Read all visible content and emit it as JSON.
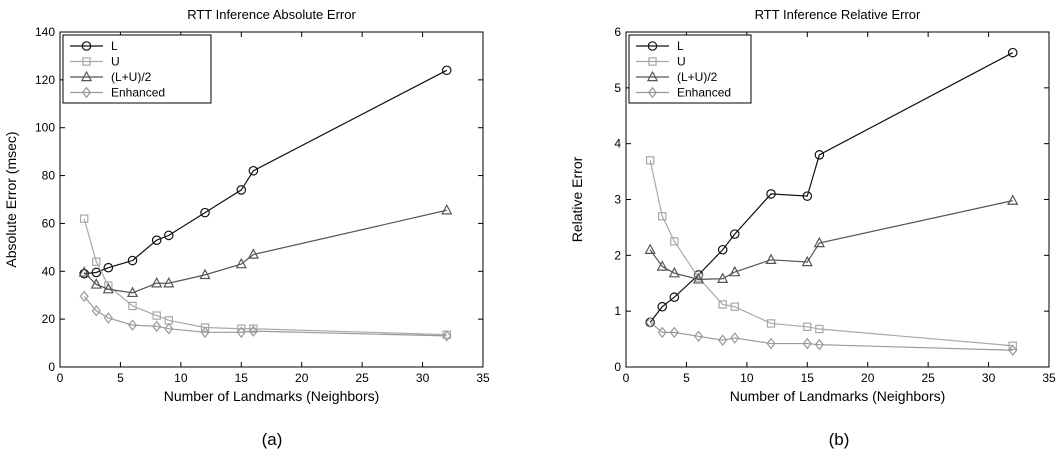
{
  "chart_data": [
    {
      "type": "line",
      "title": "RTT Inference Absolute Error",
      "xlabel": "Number of Landmarks (Neighbors)",
      "ylabel": "Absolute Error (msec)",
      "caption": "(a)",
      "xlim": [
        0,
        35
      ],
      "ylim": [
        0,
        140
      ],
      "xticks": [
        0,
        5,
        10,
        15,
        20,
        25,
        30,
        35
      ],
      "yticks": [
        0,
        20,
        40,
        60,
        80,
        100,
        120,
        140
      ],
      "legend_position": "top-left",
      "x": [
        2,
        3,
        4,
        6,
        8,
        9,
        12,
        15,
        16,
        32
      ],
      "series": [
        {
          "name": "L",
          "marker": "circle",
          "color": "#111111",
          "values": [
            39,
            39.5,
            41.5,
            44.5,
            53,
            55,
            64.5,
            74,
            82,
            124
          ]
        },
        {
          "name": "U",
          "marker": "square",
          "color": "#a8a8a8",
          "values": [
            62,
            44,
            34,
            25.5,
            21.5,
            19.5,
            16.5,
            16,
            16,
            13.5
          ]
        },
        {
          "name": "(L+U)/2",
          "marker": "triangle",
          "color": "#555555",
          "values": [
            39.5,
            34.5,
            32.5,
            31,
            35,
            35,
            38.5,
            43,
            47,
            65.5
          ]
        },
        {
          "name": "Enhanced",
          "marker": "diamond",
          "color": "#999999",
          "values": [
            29.5,
            23.5,
            20.5,
            17.5,
            17,
            16,
            14.5,
            14.5,
            15,
            13
          ]
        }
      ]
    },
    {
      "type": "line",
      "title": "RTT Inference Relative Error",
      "xlabel": "Number of Landmarks (Neighbors)",
      "ylabel": "Relative Error",
      "caption": "(b)",
      "xlim": [
        0,
        35
      ],
      "ylim": [
        0,
        6
      ],
      "xticks": [
        0,
        5,
        10,
        15,
        20,
        25,
        30,
        35
      ],
      "yticks": [
        0,
        1,
        2,
        3,
        4,
        5,
        6
      ],
      "legend_position": "top-left",
      "x": [
        2,
        3,
        4,
        6,
        8,
        9,
        12,
        15,
        16,
        32
      ],
      "series": [
        {
          "name": "L",
          "marker": "circle",
          "color": "#111111",
          "values": [
            0.8,
            1.08,
            1.25,
            1.65,
            2.1,
            2.38,
            3.1,
            3.06,
            3.8,
            5.63
          ]
        },
        {
          "name": "U",
          "marker": "square",
          "color": "#a8a8a8",
          "values": [
            3.7,
            2.7,
            2.25,
            1.6,
            1.12,
            1.08,
            0.78,
            0.72,
            0.68,
            0.38
          ]
        },
        {
          "name": "(L+U)/2",
          "marker": "triangle",
          "color": "#555555",
          "values": [
            2.1,
            1.8,
            1.68,
            1.57,
            1.58,
            1.7,
            1.92,
            1.88,
            2.22,
            2.98
          ]
        },
        {
          "name": "Enhanced",
          "marker": "diamond",
          "color": "#999999",
          "values": [
            0.8,
            0.62,
            0.62,
            0.55,
            0.48,
            0.52,
            0.42,
            0.42,
            0.4,
            0.3
          ]
        }
      ]
    }
  ]
}
